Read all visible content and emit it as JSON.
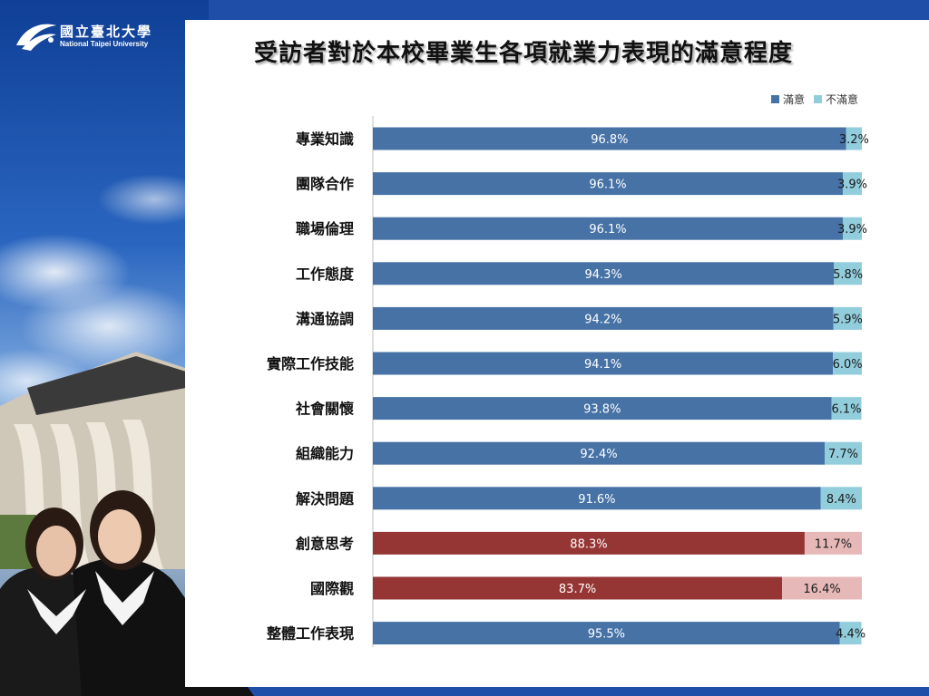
{
  "header": {
    "logo_cn": "國立臺北大學",
    "logo_en": "National Taipei University"
  },
  "chart_data": {
    "type": "bar",
    "orientation": "horizontal",
    "stacked": true,
    "title": "受訪者對於本校畢業生各項就業力表現的滿意程度",
    "categories": [
      "專業知識",
      "團隊合作",
      "職場倫理",
      "工作態度",
      "溝通協調",
      "實際工作技能",
      "社會關懷",
      "組織能力",
      "解決問題",
      "創意思考",
      "國際觀",
      "整體工作表現"
    ],
    "series": [
      {
        "name": "滿意",
        "values": [
          96.8,
          96.1,
          96.1,
          94.3,
          94.2,
          94.1,
          93.8,
          92.4,
          91.6,
          88.3,
          83.7,
          95.5
        ],
        "labels": [
          "96.8%",
          "96.1%",
          "96.1%",
          "94.3%",
          "94.2%",
          "94.1%",
          "93.8%",
          "92.4%",
          "91.6%",
          "88.3%",
          "83.7%",
          "95.5%"
        ]
      },
      {
        "name": "不滿意",
        "values": [
          3.2,
          3.9,
          3.9,
          5.8,
          5.9,
          6.0,
          6.1,
          7.7,
          8.4,
          11.7,
          16.4,
          4.4
        ],
        "labels": [
          "3.2%",
          "3.9%",
          "3.9%",
          "5.8%",
          "5.9%",
          "6.0%",
          "6.1%",
          "7.7%",
          "8.4%",
          "11.7%",
          "16.4%",
          "4.4%"
        ]
      }
    ],
    "highlighted_categories": [
      "創意思考",
      "國際觀"
    ],
    "xlim": [
      0,
      100
    ],
    "legend_position": "top-right",
    "grid": false,
    "colors": {
      "satisfied": "#4672a6",
      "unsatisfied": "#92cddc",
      "satisfied_highlight": "#963634",
      "unsatisfied_highlight": "#e6b9b8",
      "satisfied_text": "#ffffff",
      "unsatisfied_text": "#1a1a1a",
      "highlight_text": "#ffffff",
      "highlight_unsat_text": "#1a1a1a"
    }
  }
}
